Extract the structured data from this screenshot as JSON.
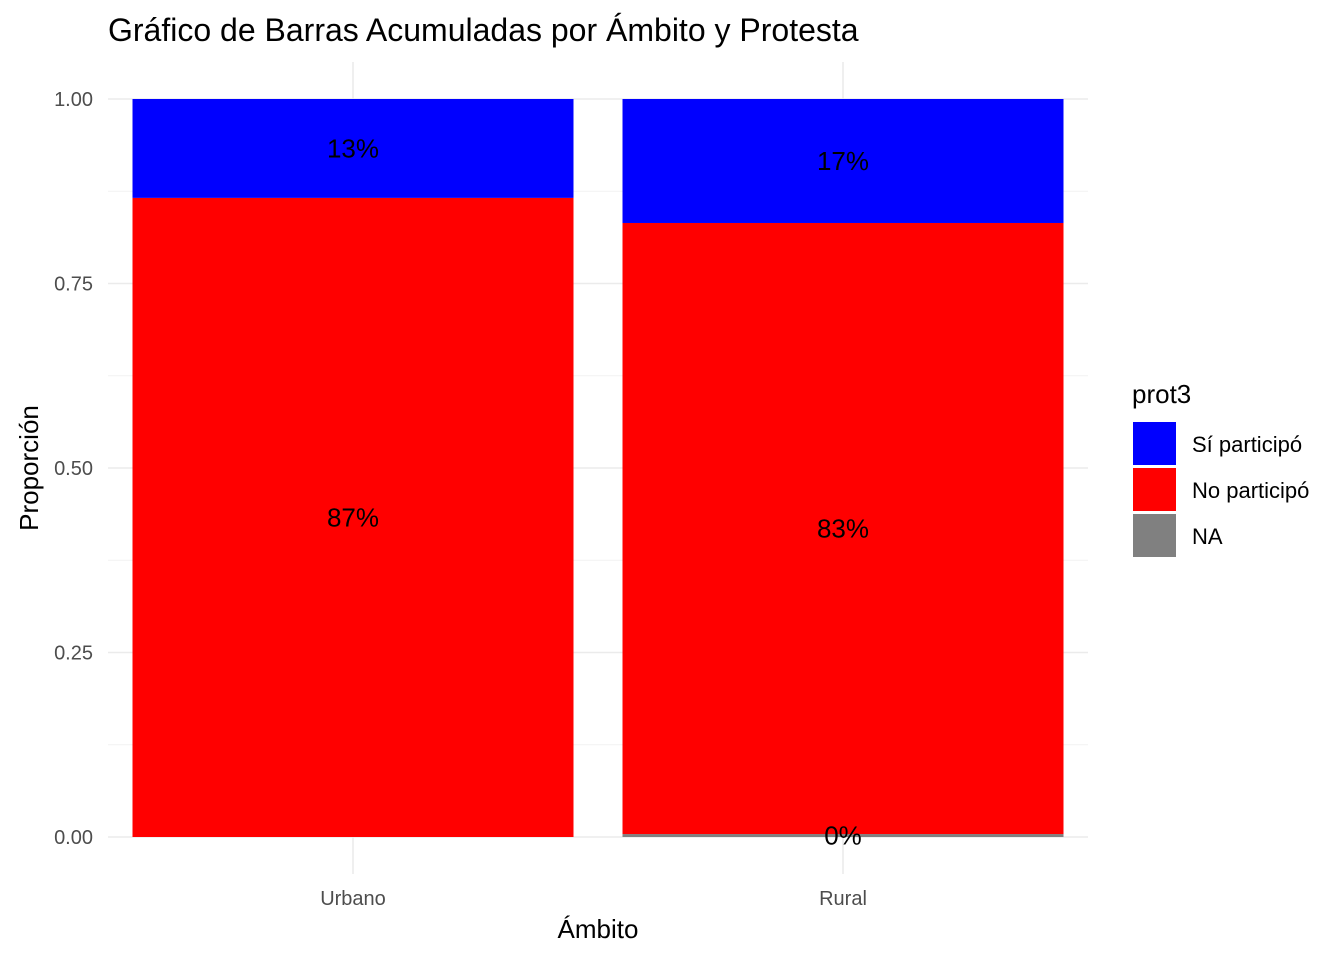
{
  "chart_data": {
    "type": "bar",
    "stacked": true,
    "title": "Gráfico de Barras Acumuladas por Ámbito y Protesta",
    "xlabel": "Ámbito",
    "ylabel": "Proporción",
    "categories": [
      "Urbano",
      "Rural"
    ],
    "ylim": [
      0,
      1
    ],
    "yticks": [
      "0.00",
      "0.25",
      "0.50",
      "0.75",
      "1.00"
    ],
    "grid": true,
    "legend": {
      "title": "prot3",
      "position": "right"
    },
    "series": [
      {
        "name": "NA",
        "color": "#808080",
        "values": [
          0.0,
          0.004
        ],
        "labels": [
          "",
          "0%"
        ]
      },
      {
        "name": "No participó",
        "color": "#ff0000",
        "values": [
          0.866,
          0.828
        ],
        "labels": [
          "87%",
          "83%"
        ]
      },
      {
        "name": "Sí participó",
        "color": "#0000ff",
        "values": [
          0.134,
          0.168
        ],
        "labels": [
          "13%",
          "17%"
        ]
      }
    ],
    "legend_order": [
      "Sí participó",
      "No participó",
      "NA"
    ]
  }
}
